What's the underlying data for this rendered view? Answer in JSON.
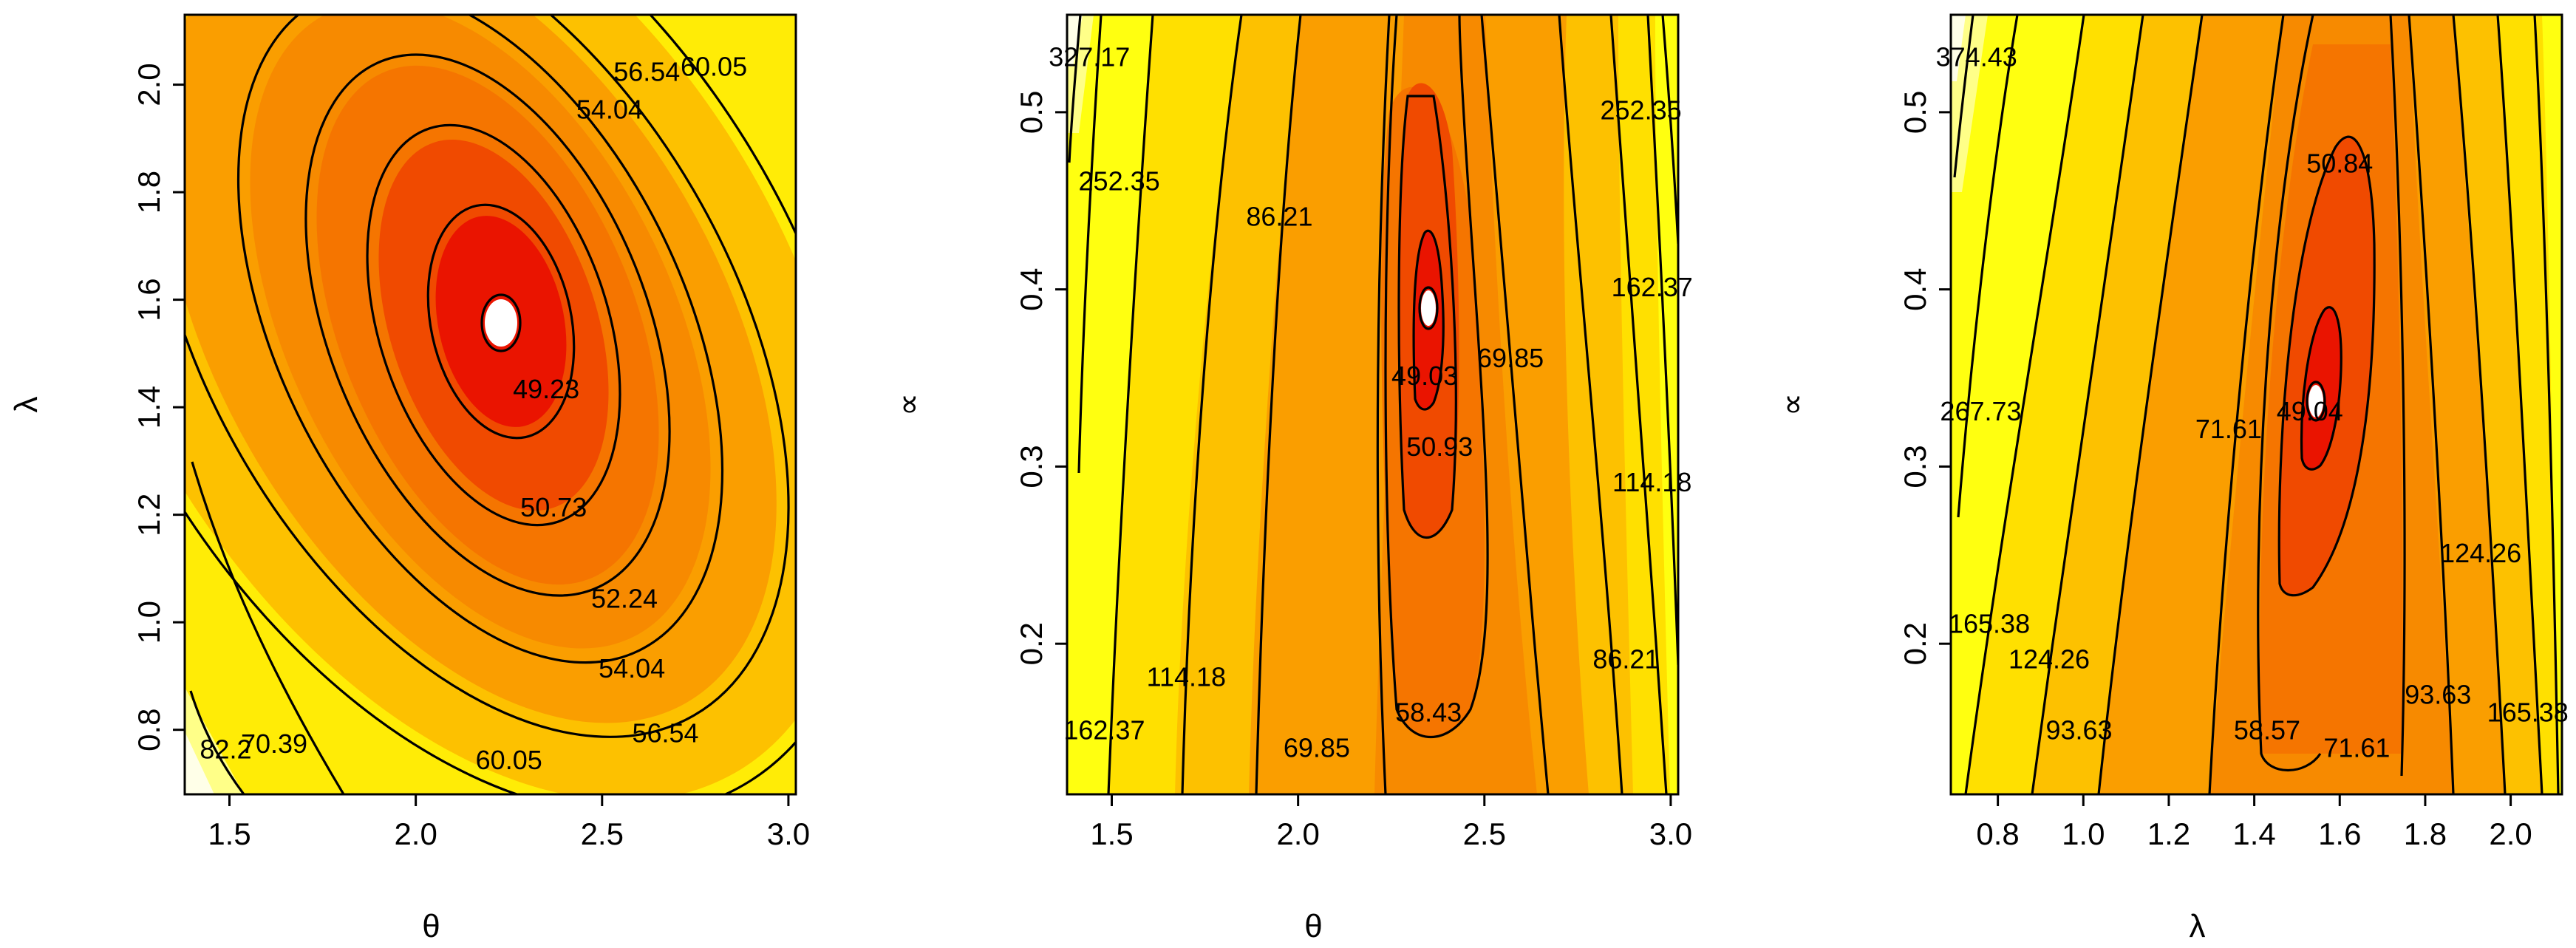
{
  "colors": {
    "level_1": "#ffffff",
    "level_2": "#ea1400",
    "level_3": "#f04a00",
    "level_4": "#f57500",
    "level_5": "#fa9e00",
    "level_6": "#fdc100",
    "level_7": "#ffe000",
    "level_8": "#ffff10",
    "level_9": "#ffff88",
    "level_10": "#ffffe8"
  },
  "chart_data": [
    {
      "type": "contour",
      "xlabel": "θ",
      "ylabel": "λ",
      "xlim": [
        1.38,
        3.02
      ],
      "ylim": [
        0.68,
        2.13
      ],
      "xticks": [
        "1.5",
        "2.0",
        "2.5",
        "3.0"
      ],
      "yticks": [
        "0.8",
        "1.0",
        "1.2",
        "1.4",
        "1.6",
        "1.8",
        "2.0"
      ],
      "minimum": {
        "x": 2.25,
        "y": 1.55
      },
      "contour_levels": [
        "49.23",
        "50.73",
        "52.24",
        "54.04",
        "56.54",
        "60.05",
        "70.39",
        "82.2"
      ],
      "labels": [
        {
          "text": "49.23",
          "x": 2.35,
          "y": 1.43
        },
        {
          "text": "50.73",
          "x": 2.37,
          "y": 1.21
        },
        {
          "text": "52.24",
          "x": 2.56,
          "y": 1.04
        },
        {
          "text": "54.04",
          "x": 2.58,
          "y": 0.91
        },
        {
          "text": "56.54",
          "x": 2.67,
          "y": 0.79
        },
        {
          "text": "60.05",
          "x": 2.25,
          "y": 0.74
        },
        {
          "text": "70.39",
          "x": 1.62,
          "y": 0.77
        },
        {
          "text": "82.2",
          "x": 1.49,
          "y": 0.76
        },
        {
          "text": "54.04",
          "x": 2.52,
          "y": 1.95
        },
        {
          "text": "56.54",
          "x": 2.62,
          "y": 2.02
        },
        {
          "text": "60.05",
          "x": 2.8,
          "y": 2.03
        }
      ]
    },
    {
      "type": "contour",
      "xlabel": "θ",
      "ylabel": "∝",
      "xlim": [
        1.38,
        3.02
      ],
      "ylim": [
        0.115,
        0.555
      ],
      "xticks": [
        "1.5",
        "2.0",
        "2.5",
        "3.0"
      ],
      "yticks": [
        "0.2",
        "0.3",
        "0.4",
        "0.5"
      ],
      "minimum": {
        "x": 2.35,
        "y": 0.38
      },
      "contour_levels": [
        "49.03",
        "50.93",
        "58.43",
        "69.85",
        "86.21",
        "114.18",
        "162.37",
        "252.35",
        "327.17"
      ],
      "labels": [
        {
          "text": "49.03",
          "x": 2.34,
          "y": 0.35
        },
        {
          "text": "50.93",
          "x": 2.38,
          "y": 0.31
        },
        {
          "text": "58.43",
          "x": 2.35,
          "y": 0.16
        },
        {
          "text": "69.85",
          "x": 2.57,
          "y": 0.36
        },
        {
          "text": "69.85",
          "x": 2.05,
          "y": 0.14
        },
        {
          "text": "86.21",
          "x": 1.95,
          "y": 0.44
        },
        {
          "text": "86.21",
          "x": 2.88,
          "y": 0.19
        },
        {
          "text": "114.18",
          "x": 1.7,
          "y": 0.18
        },
        {
          "text": "114.18",
          "x": 2.95,
          "y": 0.29
        },
        {
          "text": "162.37",
          "x": 1.48,
          "y": 0.15
        },
        {
          "text": "162.37",
          "x": 2.95,
          "y": 0.4
        },
        {
          "text": "252.35",
          "x": 1.52,
          "y": 0.46
        },
        {
          "text": "252.35",
          "x": 2.92,
          "y": 0.5
        },
        {
          "text": "327.17",
          "x": 1.44,
          "y": 0.53
        }
      ]
    },
    {
      "type": "contour",
      "xlabel": "λ",
      "ylabel": "∝",
      "xlim": [
        0.69,
        2.12
      ],
      "ylim": [
        0.115,
        0.555
      ],
      "xticks": [
        "0.8",
        "1.0",
        "1.2",
        "1.4",
        "1.6",
        "1.8",
        "2.0"
      ],
      "yticks": [
        "0.2",
        "0.3",
        "0.4",
        "0.5"
      ],
      "minimum": {
        "x": 1.54,
        "y": 0.33
      },
      "contour_levels": [
        "49.04",
        "50.84",
        "58.57",
        "71.61",
        "93.63",
        "124.26",
        "165.38",
        "267.73",
        "374.43"
      ],
      "labels": [
        {
          "text": "49.04",
          "x": 1.53,
          "y": 0.33
        },
        {
          "text": "50.84",
          "x": 1.6,
          "y": 0.47
        },
        {
          "text": "58.57",
          "x": 1.43,
          "y": 0.15
        },
        {
          "text": "71.61",
          "x": 1.34,
          "y": 0.32
        },
        {
          "text": "71.61",
          "x": 1.64,
          "y": 0.14
        },
        {
          "text": "93.63",
          "x": 0.99,
          "y": 0.15
        },
        {
          "text": "93.63",
          "x": 1.83,
          "y": 0.17
        },
        {
          "text": "124.26",
          "x": 0.92,
          "y": 0.19
        },
        {
          "text": "124.26",
          "x": 1.93,
          "y": 0.25
        },
        {
          "text": "165.38",
          "x": 0.78,
          "y": 0.21
        },
        {
          "text": "165.38",
          "x": 2.04,
          "y": 0.16
        },
        {
          "text": "267.73",
          "x": 0.76,
          "y": 0.33
        },
        {
          "text": "374.43",
          "x": 0.75,
          "y": 0.53
        }
      ]
    }
  ]
}
